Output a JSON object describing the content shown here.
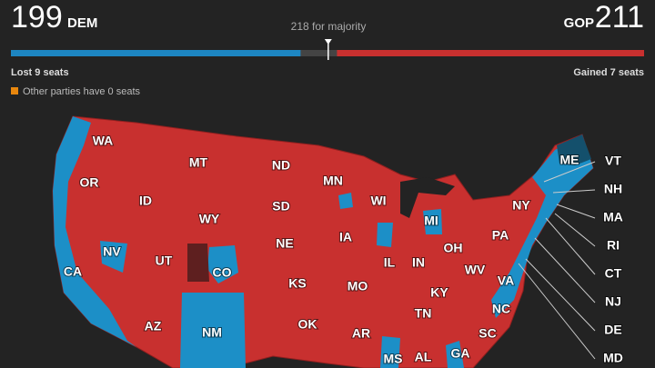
{
  "header": {
    "dem": {
      "count": 199,
      "label": "DEM"
    },
    "gop": {
      "label": "GOP",
      "count": 211
    },
    "majority": {
      "seats": 218,
      "label": "for majority"
    },
    "bar": {
      "xlim": [
        0,
        435
      ]
    },
    "dem_change": "Lost 9 seats",
    "gop_change": "Gained 7 seats",
    "other_note": "Other parties have 0 seats"
  },
  "map": {
    "states": [
      "WA",
      "OR",
      "CA",
      "NV",
      "ID",
      "MT",
      "WY",
      "UT",
      "CO",
      "AZ",
      "NM",
      "ND",
      "SD",
      "NE",
      "KS",
      "OK",
      "MN",
      "IA",
      "MO",
      "AR",
      "WI",
      "IL",
      "MI",
      "IN",
      "OH",
      "KY",
      "TN",
      "MS",
      "AL",
      "GA",
      "SC",
      "NC",
      "VA",
      "WV",
      "PA",
      "NY",
      "ME"
    ],
    "callouts": [
      "VT",
      "NH",
      "MA",
      "RI",
      "CT",
      "NJ",
      "DE",
      "MD"
    ]
  }
}
